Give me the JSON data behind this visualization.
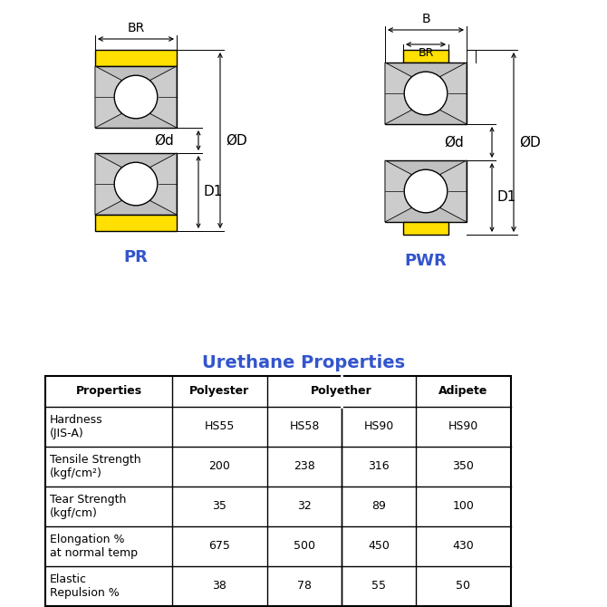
{
  "bg_color": "#ffffff",
  "yellow_color": "#FFE000",
  "gray_color": "#B8B8B8",
  "dark_gray": "#888888",
  "white_color": "#FFFFFF",
  "black": "#000000",
  "blue": "#3355CC",
  "table_title": "Urethane Properties",
  "table_headers": [
    "Properties",
    "Polyester",
    "Polyether",
    "Adipete"
  ],
  "table_rows": [
    [
      "Hardness\n(JIS-A)",
      "HS55",
      "HS58",
      "HS90",
      "HS90"
    ],
    [
      "Tensile Strength\n(kgf/cm²)",
      "200",
      "238",
      "316",
      "350"
    ],
    [
      "Tear Strength\n(kgf/cm)",
      "35",
      "32",
      "89",
      "100"
    ],
    [
      "Elongation %\nat normal temp",
      "675",
      "500",
      "450",
      "430"
    ],
    [
      "Elastic\nRepulsion %",
      "38",
      "78",
      "55",
      "50"
    ]
  ],
  "pr_label": "PR",
  "pwr_label": "PWR",
  "od_label": "ØD",
  "od_small": "Ød",
  "br_label": "BR",
  "b_label": "B",
  "d1_label": "D1"
}
